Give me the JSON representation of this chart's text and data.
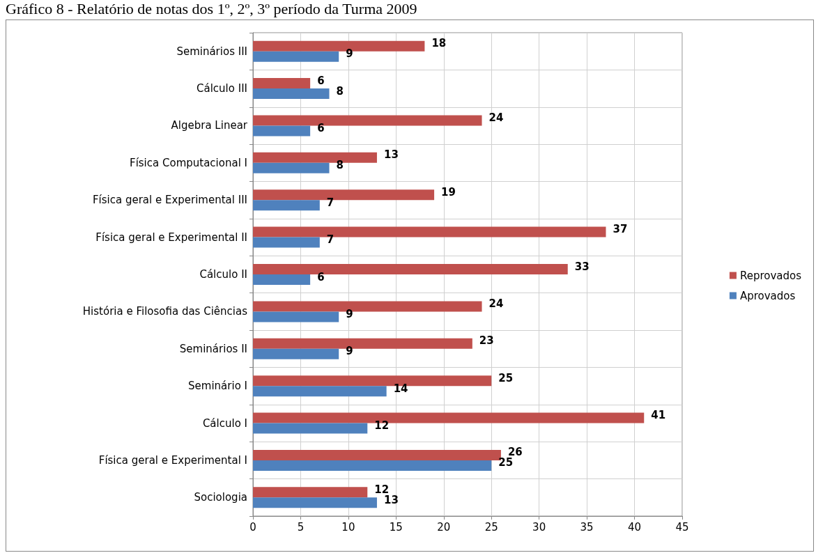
{
  "chart_data": {
    "type": "bar",
    "orientation": "horizontal",
    "title": "Gráfico 8 - Relatório de notas dos 1º, 2º, 3º período da Turma 2009",
    "categories": [
      "Seminários III",
      "Cálculo III",
      "Algebra Linear",
      "Física Computacional I",
      "Física geral e Experimental III",
      "Física geral e Experimental II",
      "Cálculo II",
      "História e Filosofia das Ciências",
      "Seminários II",
      "Seminário I",
      "Cálculo I",
      "Física geral e Experimental I",
      "Sociologia"
    ],
    "series": [
      {
        "name": "Reprovados",
        "color": "#c0504d",
        "values": [
          18,
          6,
          24,
          13,
          19,
          37,
          33,
          24,
          23,
          25,
          41,
          26,
          12
        ]
      },
      {
        "name": "Aprovados",
        "color": "#4f81bd",
        "values": [
          9,
          8,
          6,
          8,
          7,
          7,
          6,
          9,
          9,
          14,
          12,
          25,
          13
        ]
      }
    ],
    "xlim": [
      0,
      45
    ],
    "xticks": [
      0,
      5,
      10,
      15,
      20,
      25,
      30,
      35,
      40,
      45
    ],
    "grid": true,
    "legend": "right",
    "data_labels": true
  }
}
